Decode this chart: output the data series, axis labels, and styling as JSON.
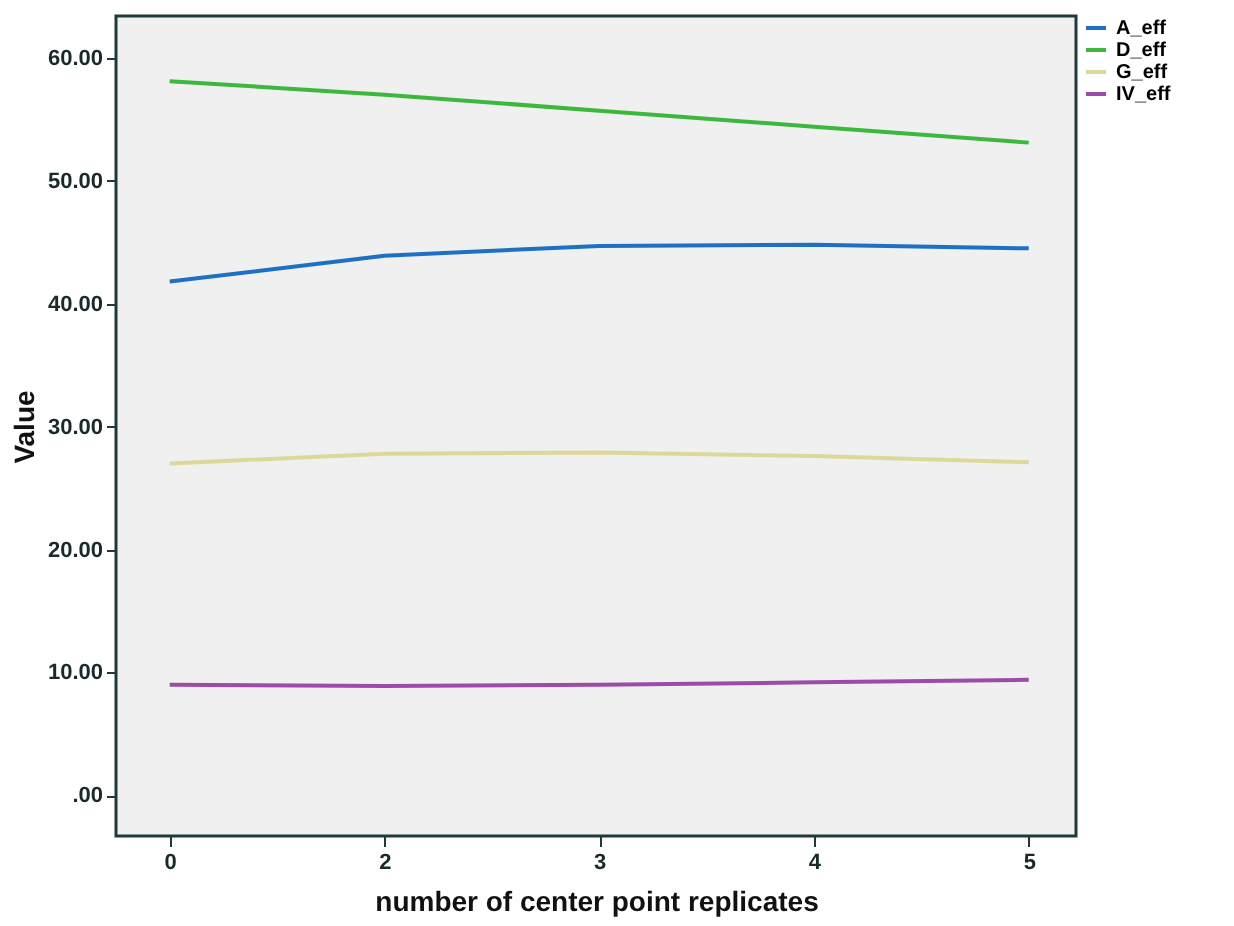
{
  "chart_data": {
    "type": "line",
    "xlabel": "number of center point replicates",
    "ylabel": "Value",
    "categories": [
      "0",
      "2",
      "3",
      "4",
      "5"
    ],
    "series": [
      {
        "name": "A_eff",
        "color": "#1f6fc5",
        "values": [
          41.8,
          43.9,
          44.7,
          44.8,
          44.5
        ]
      },
      {
        "name": "D_eff",
        "color": "#3cb83c",
        "values": [
          58.1,
          57.0,
          55.7,
          54.4,
          53.1
        ]
      },
      {
        "name": "G_eff",
        "color": "#ddd898",
        "values": [
          27.0,
          27.8,
          27.9,
          27.6,
          27.1
        ]
      },
      {
        "name": "IV_eff",
        "color": "#9b4ca8",
        "values": [
          9.0,
          8.9,
          9.0,
          9.2,
          9.4
        ]
      }
    ],
    "ylim": [
      -3.3,
      63.4
    ],
    "yticks": [
      {
        "value": 0,
        "label": ".00"
      },
      {
        "value": 10,
        "label": "10.00"
      },
      {
        "value": 20,
        "label": "20.00"
      },
      {
        "value": 30,
        "label": "30.00"
      },
      {
        "value": 40,
        "label": "40.00"
      },
      {
        "value": 50,
        "label": "50.00"
      },
      {
        "value": 60,
        "label": "60.00"
      }
    ],
    "grid": false,
    "legend": "top right",
    "marker": "none"
  }
}
